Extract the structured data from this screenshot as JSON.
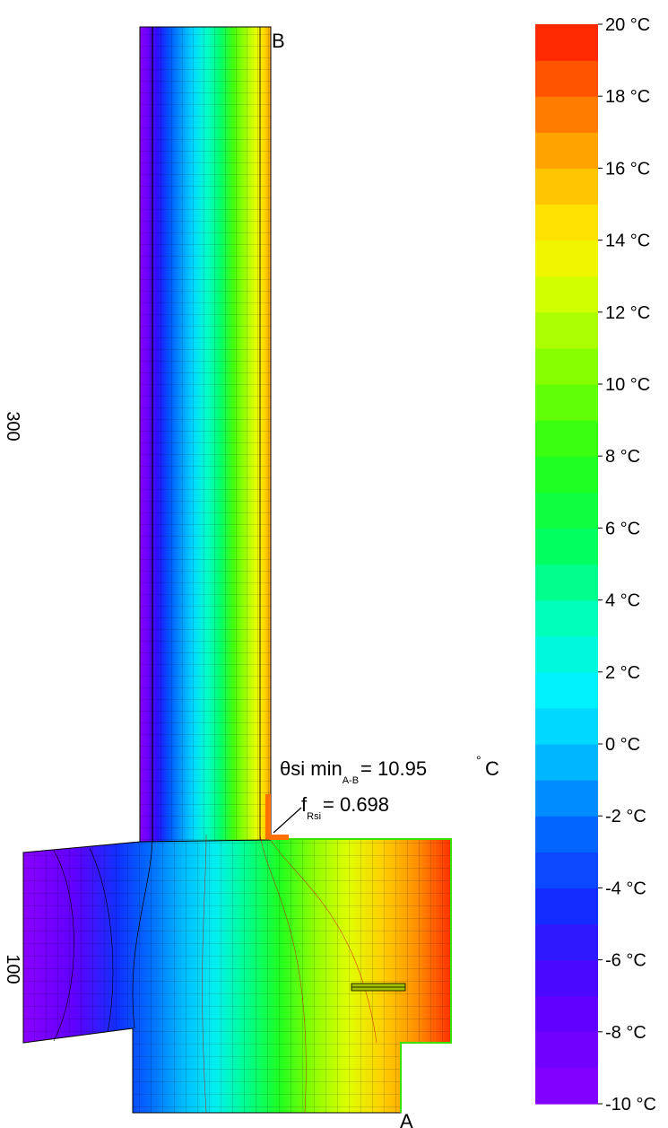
{
  "dimensions": {
    "vertical_upper": "300",
    "vertical_lower": "100"
  },
  "points": {
    "a": "A",
    "b": "B"
  },
  "annotation": {
    "theta_symbol": "θ",
    "theta_main": "si min",
    "theta_sub": "A-B",
    "theta_value": "= 10.95",
    "deg": "°",
    "unit": "C",
    "f_main": "f",
    "f_sub": "Rsi",
    "f_value": "= 0.698"
  },
  "scale": {
    "min": -10,
    "max": 20,
    "step": 1,
    "tick_labels": [
      "20",
      "18",
      "16",
      "14",
      "12",
      "10",
      "8",
      "6",
      "4",
      "2",
      "0",
      "-2",
      "-4",
      "-6",
      "-8",
      "-10"
    ],
    "unit": "°C"
  }
}
